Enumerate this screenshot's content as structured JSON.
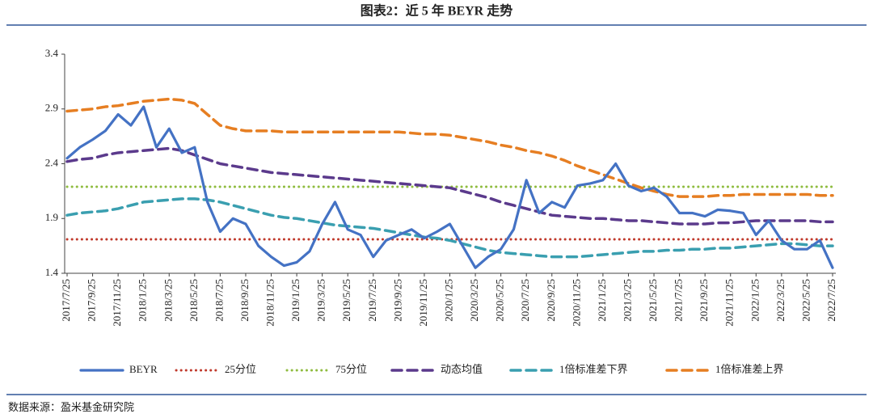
{
  "chart_data": {
    "type": "line",
    "title": "图表2：近 5 年 BEYR 走势",
    "source": "数据来源：盈米基金研究院",
    "categories": [
      "2017/7/25",
      null,
      "2017/9/25",
      null,
      "2017/11/25",
      null,
      "2018/1/25",
      null,
      "2018/3/25",
      null,
      "2018/5/25",
      null,
      "2018/7/25",
      null,
      "2018/9/25",
      null,
      "2018/11/25",
      null,
      "2019/1/25",
      null,
      "2019/3/25",
      null,
      "2019/5/25",
      null,
      "2019/7/25",
      null,
      "2019/9/25",
      null,
      "2019/11/25",
      null,
      "2020/1/25",
      null,
      "2020/3/25",
      null,
      "2020/5/25",
      null,
      "2020/7/25",
      null,
      "2020/9/25",
      null,
      "2020/11/25",
      null,
      "2021/1/25",
      null,
      "2021/3/25",
      null,
      "2021/5/25",
      null,
      "2021/7/25",
      null,
      "2021/9/25",
      null,
      "2021/11/25",
      null,
      "2022/1/25",
      null,
      "2022/3/25",
      null,
      "2022/5/25",
      null,
      "2022/7/25"
    ],
    "ylim": [
      1.4,
      3.4
    ],
    "yticks": [
      1.4,
      1.9,
      2.4,
      2.9,
      3.4
    ],
    "grid": false,
    "series": [
      {
        "name": "BEYR",
        "color": "#4472c4",
        "style": "solid",
        "values": [
          2.45,
          2.55,
          2.62,
          2.7,
          2.85,
          2.75,
          2.92,
          2.55,
          2.72,
          2.5,
          2.55,
          2.05,
          1.78,
          1.9,
          1.85,
          1.65,
          1.55,
          1.47,
          1.5,
          1.6,
          1.85,
          2.05,
          1.8,
          1.75,
          1.55,
          1.7,
          1.75,
          1.8,
          1.72,
          1.78,
          1.85,
          1.65,
          1.45,
          1.55,
          1.62,
          1.8,
          2.25,
          1.95,
          2.05,
          2.0,
          2.2,
          2.22,
          2.25,
          2.4,
          2.2,
          2.15,
          2.18,
          2.1,
          1.95,
          1.95,
          1.92,
          1.98,
          1.97,
          1.95,
          1.75,
          1.88,
          1.7,
          1.62,
          1.62,
          1.7,
          1.45
        ]
      },
      {
        "name": "25分位",
        "color": "#c0392b",
        "style": "dotted",
        "values": [
          1.71,
          1.71,
          1.71,
          1.71,
          1.71,
          1.71,
          1.71,
          1.71,
          1.71,
          1.71,
          1.71,
          1.71,
          1.71,
          1.71,
          1.71,
          1.71,
          1.71,
          1.71,
          1.71,
          1.71,
          1.71,
          1.71,
          1.71,
          1.71,
          1.71,
          1.71,
          1.71,
          1.71,
          1.71,
          1.71,
          1.71,
          1.71,
          1.71,
          1.71,
          1.71,
          1.71,
          1.71,
          1.71,
          1.71,
          1.71,
          1.71,
          1.71,
          1.71,
          1.71,
          1.71,
          1.71,
          1.71,
          1.71,
          1.71,
          1.71,
          1.71,
          1.71,
          1.71,
          1.71,
          1.71,
          1.71,
          1.71,
          1.71,
          1.71,
          1.71,
          1.71
        ]
      },
      {
        "name": "75分位",
        "color": "#8fbc3f",
        "style": "dotted",
        "values": [
          2.19,
          2.19,
          2.19,
          2.19,
          2.19,
          2.19,
          2.19,
          2.19,
          2.19,
          2.19,
          2.19,
          2.19,
          2.19,
          2.19,
          2.19,
          2.19,
          2.19,
          2.19,
          2.19,
          2.19,
          2.19,
          2.19,
          2.19,
          2.19,
          2.19,
          2.19,
          2.19,
          2.19,
          2.19,
          2.19,
          2.19,
          2.19,
          2.19,
          2.19,
          2.19,
          2.19,
          2.19,
          2.19,
          2.19,
          2.19,
          2.19,
          2.19,
          2.19,
          2.19,
          2.19,
          2.19,
          2.19,
          2.19,
          2.19,
          2.19,
          2.19,
          2.19,
          2.19,
          2.19,
          2.19,
          2.19,
          2.19,
          2.19,
          2.19,
          2.19,
          2.19
        ]
      },
      {
        "name": "动态均值",
        "color": "#5b3a8c",
        "style": "dashed",
        "values": [
          2.42,
          2.44,
          2.45,
          2.48,
          2.5,
          2.51,
          2.52,
          2.53,
          2.54,
          2.52,
          2.48,
          2.44,
          2.4,
          2.38,
          2.36,
          2.34,
          2.32,
          2.31,
          2.3,
          2.29,
          2.28,
          2.27,
          2.26,
          2.25,
          2.24,
          2.23,
          2.22,
          2.21,
          2.2,
          2.19,
          2.18,
          2.15,
          2.12,
          2.09,
          2.05,
          2.02,
          1.99,
          1.96,
          1.93,
          1.92,
          1.91,
          1.9,
          1.9,
          1.89,
          1.88,
          1.88,
          1.87,
          1.86,
          1.85,
          1.85,
          1.85,
          1.86,
          1.86,
          1.87,
          1.88,
          1.88,
          1.88,
          1.88,
          1.88,
          1.87,
          1.87
        ]
      },
      {
        "name": "1倍标准差下界",
        "color": "#3a9fb0",
        "style": "dashed",
        "values": [
          1.93,
          1.95,
          1.96,
          1.97,
          1.99,
          2.02,
          2.05,
          2.06,
          2.07,
          2.08,
          2.08,
          2.07,
          2.05,
          2.02,
          1.99,
          1.96,
          1.93,
          1.91,
          1.9,
          1.88,
          1.86,
          1.84,
          1.83,
          1.82,
          1.81,
          1.79,
          1.77,
          1.75,
          1.73,
          1.72,
          1.7,
          1.67,
          1.64,
          1.61,
          1.59,
          1.58,
          1.57,
          1.56,
          1.55,
          1.55,
          1.55,
          1.56,
          1.57,
          1.58,
          1.59,
          1.6,
          1.6,
          1.61,
          1.61,
          1.62,
          1.62,
          1.63,
          1.63,
          1.64,
          1.65,
          1.66,
          1.67,
          1.67,
          1.66,
          1.65,
          1.65
        ]
      },
      {
        "name": "1倍标准差上界",
        "color": "#e67e22",
        "style": "dashed",
        "values": [
          2.88,
          2.89,
          2.9,
          2.92,
          2.93,
          2.95,
          2.97,
          2.98,
          2.99,
          2.98,
          2.95,
          2.85,
          2.75,
          2.72,
          2.7,
          2.7,
          2.7,
          2.69,
          2.69,
          2.69,
          2.69,
          2.69,
          2.69,
          2.69,
          2.69,
          2.69,
          2.69,
          2.68,
          2.67,
          2.67,
          2.66,
          2.64,
          2.62,
          2.6,
          2.57,
          2.55,
          2.52,
          2.5,
          2.47,
          2.43,
          2.38,
          2.34,
          2.3,
          2.26,
          2.22,
          2.18,
          2.15,
          2.12,
          2.1,
          2.1,
          2.1,
          2.11,
          2.11,
          2.12,
          2.12,
          2.12,
          2.12,
          2.12,
          2.12,
          2.11,
          2.11
        ]
      }
    ]
  }
}
